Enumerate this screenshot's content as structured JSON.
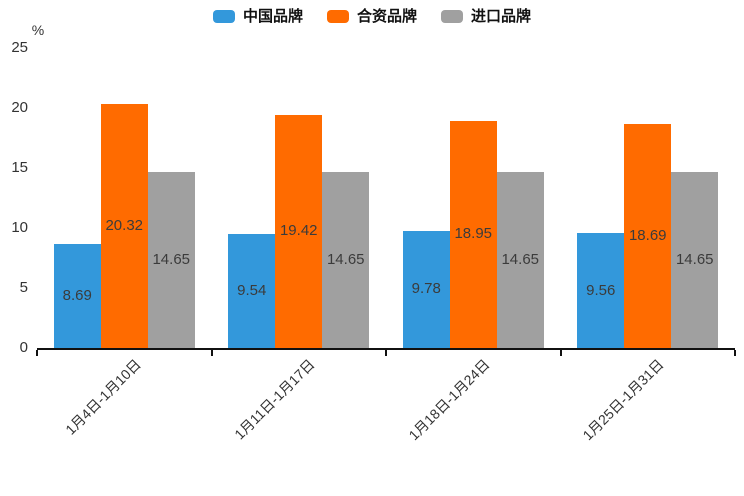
{
  "chart_data": {
    "type": "bar",
    "title": "",
    "xlabel": "",
    "ylabel": "%",
    "ylim": [
      0,
      25
    ],
    "yticks": [
      0,
      5,
      10,
      15,
      20,
      25
    ],
    "grid": false,
    "legend_position": "top-center",
    "value_labels": "inside-center, two decimals",
    "categories": [
      "1月4日-1月10日",
      "1月11日-1月17日",
      "1月18日-1月24日",
      "1月25日-1月31日"
    ],
    "series": [
      {
        "name": "中国品牌",
        "color": "#3398DB",
        "values": [
          8.69,
          9.54,
          9.78,
          9.56
        ]
      },
      {
        "name": "合资品牌",
        "color": "#FF6B00",
        "values": [
          20.32,
          19.42,
          18.95,
          18.69
        ]
      },
      {
        "name": "进口品牌",
        "color": "#A0A0A0",
        "values": [
          14.65,
          14.65,
          14.65,
          14.65
        ]
      }
    ]
  },
  "colors": {
    "axis": "#111111",
    "tick_text": "#333333",
    "bar_value_text": "#3b3b3b",
    "background": "#ffffff"
  }
}
